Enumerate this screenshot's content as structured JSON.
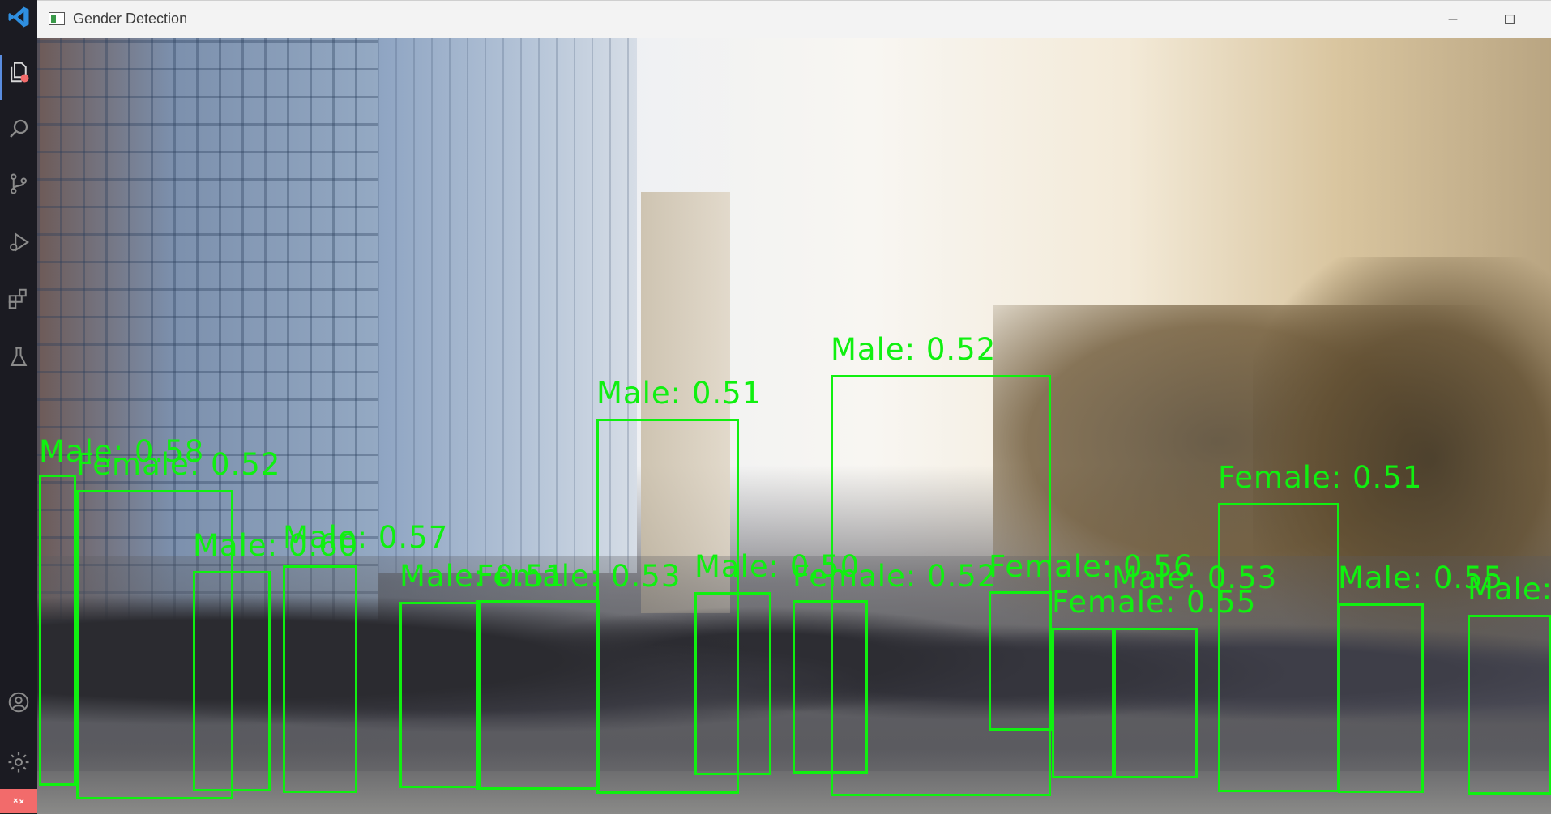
{
  "activity_bar": {
    "items": [
      {
        "name": "explorer-icon"
      },
      {
        "name": "search-icon"
      },
      {
        "name": "source-control-icon"
      },
      {
        "name": "run-debug-icon"
      },
      {
        "name": "extensions-icon"
      },
      {
        "name": "testing-icon"
      }
    ],
    "bottom": [
      {
        "name": "accounts-icon"
      },
      {
        "name": "manage-gear-icon"
      }
    ],
    "remote_color": "#f26b6b"
  },
  "window": {
    "title": "Gender Detection"
  },
  "detection": {
    "box_color": "#10f010",
    "detections": [
      {
        "label": "Male: 0.58"
      },
      {
        "label": "Female: 0.52"
      },
      {
        "label": "Male: 0.60"
      },
      {
        "label": "Male: 0.57"
      },
      {
        "label": "Male: 0.51"
      },
      {
        "label": "Female: 0.53"
      },
      {
        "label": "Male: 0.51"
      },
      {
        "label": "Male: 0.50"
      },
      {
        "label": "Female: 0.52"
      },
      {
        "label": "Male: 0.52"
      },
      {
        "label": "Female: 0.56"
      },
      {
        "label": "Female: 0.55"
      },
      {
        "label": "Male: 0.53"
      },
      {
        "label": "Female: 0.51"
      },
      {
        "label": "Male: 0.55"
      },
      {
        "label": "Male:"
      }
    ]
  }
}
